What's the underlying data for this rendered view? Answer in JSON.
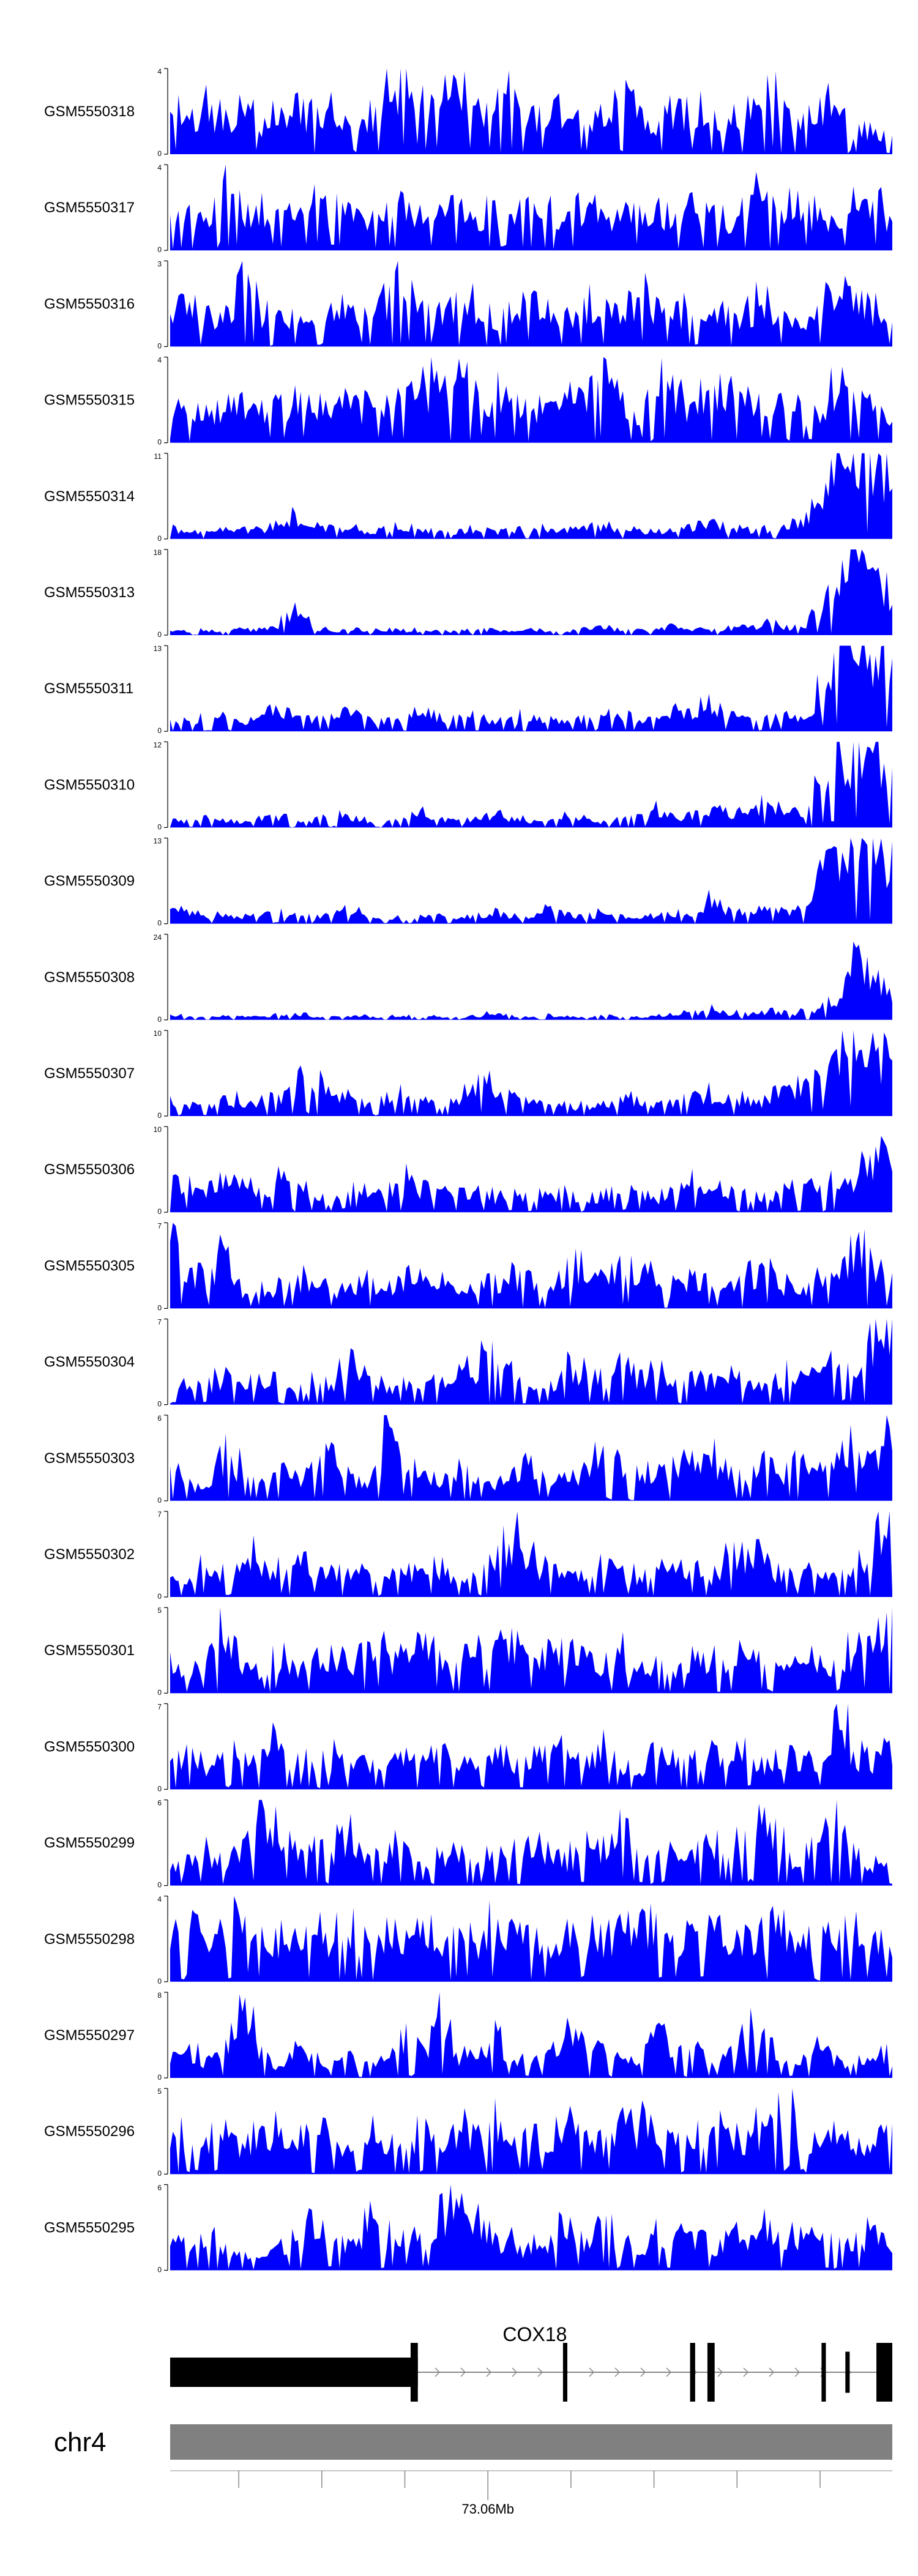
{
  "chart_data": {
    "type": "area",
    "fill_color": "#0000ff",
    "track_label_color": "#000000",
    "tracks": [
      {
        "name": "GSM5550318",
        "ymax": 4,
        "ymin": 0,
        "profile": [
          2.1,
          1.7,
          2.3,
          1.9,
          2.2,
          1.6,
          2.0,
          2.4,
          1.8,
          2.2,
          1.7,
          1.9,
          3.1,
          3.9,
          3.4,
          3.0,
          3.8,
          2.6,
          2.2,
          2.8,
          1.9,
          2.3,
          2.6,
          2.0,
          2.4,
          3.0,
          2.1,
          1.8,
          2.5,
          2.2,
          2.0,
          1.6,
          2.3,
          2.8,
          2.6,
          1.9,
          2.4,
          2.2,
          1.2,
          1.5,
          0.8
        ]
      },
      {
        "name": "GSM5550317",
        "ymax": 4,
        "ymin": 0,
        "profile": [
          1.8,
          2.2,
          1.5,
          3.8,
          2.1,
          1.9,
          2.4,
          1.6,
          2.8,
          2.3,
          2.0,
          1.7,
          2.5,
          1.9,
          2.2,
          1.8,
          2.6,
          1.7,
          2.0,
          2.4,
          3.1,
          2.2,
          1.9,
          2.3,
          1.5,
          2.0,
          2.2,
          1.8,
          2.1,
          2.5,
          2.0,
          1.6,
          2.3,
          3.0,
          2.4,
          2.1,
          1.8,
          1.5,
          2.7,
          3.0,
          1.2
        ]
      },
      {
        "name": "GSM5550316",
        "ymax": 3,
        "ymin": 0,
        "profile": [
          1.8,
          1.5,
          1.3,
          1.1,
          2.8,
          1.2,
          1.0,
          1.3,
          0.9,
          1.1,
          1.4,
          1.0,
          1.8,
          2.6,
          1.5,
          1.2,
          1.8,
          1.4,
          1.0,
          1.3,
          1.9,
          1.6,
          1.1,
          1.4,
          1.7,
          1.2,
          2.0,
          1.5,
          1.1,
          1.6,
          1.3,
          1.0,
          1.4,
          1.8,
          1.2,
          1.0,
          1.3,
          2.4,
          2.1,
          1.4,
          0.6
        ]
      },
      {
        "name": "GSM5550315",
        "ymax": 4,
        "ymin": 0,
        "profile": [
          1.9,
          2.1,
          1.7,
          1.8,
          2.3,
          2.0,
          1.9,
          2.4,
          2.1,
          1.8,
          2.0,
          1.6,
          1.9,
          2.2,
          3.0,
          2.6,
          3.8,
          2.7,
          2.2,
          2.5,
          1.8,
          2.4,
          2.1,
          2.6,
          3.1,
          2.3,
          1.5,
          2.8,
          2.2,
          1.9,
          2.6,
          2.9,
          2.3,
          1.8,
          2.0,
          1.7,
          1.9,
          3.0,
          2.8,
          1.6,
          1.0
        ]
      },
      {
        "name": "GSM5550314",
        "ymax": 11,
        "ymin": 0,
        "profile": [
          1.5,
          1.2,
          1.0,
          1.8,
          1.3,
          1.1,
          2.4,
          3.5,
          2.0,
          1.2,
          1.6,
          1.0,
          1.5,
          2.0,
          1.3,
          1.1,
          1.2,
          1.4,
          1.0,
          1.3,
          1.6,
          1.2,
          1.1,
          1.7,
          2.0,
          1.4,
          1.0,
          1.2,
          1.5,
          1.8,
          2.2,
          1.6,
          1.3,
          1.4,
          1.9,
          2.6,
          4.5,
          10.8,
          10.0,
          9.5,
          8.5
        ]
      },
      {
        "name": "GSM5550313",
        "ymax": 18,
        "ymin": 0,
        "profile": [
          1.0,
          0.8,
          1.2,
          0.9,
          1.5,
          1.1,
          2.5,
          4.8,
          1.8,
          1.0,
          1.3,
          1.1,
          1.4,
          1.2,
          1.0,
          0.9,
          1.1,
          1.3,
          1.0,
          1.2,
          1.5,
          1.1,
          0.9,
          1.4,
          1.8,
          1.2,
          1.1,
          1.3,
          2.0,
          1.5,
          1.2,
          1.4,
          2.2,
          2.8,
          1.8,
          2.0,
          6.0,
          15.0,
          17.5,
          15.0,
          10.0
        ]
      },
      {
        "name": "GSM5550311",
        "ymax": 13,
        "ymin": 0,
        "profile": [
          2.0,
          1.8,
          3.0,
          2.2,
          1.6,
          2.5,
          3.5,
          2.8,
          2.0,
          2.6,
          3.2,
          2.1,
          1.8,
          2.4,
          3.8,
          2.6,
          2.0,
          2.8,
          1.9,
          2.4,
          3.0,
          2.2,
          1.7,
          2.3,
          3.6,
          2.4,
          2.0,
          2.6,
          2.9,
          3.4,
          4.5,
          2.8,
          2.2,
          1.9,
          2.5,
          2.0,
          6.5,
          12.5,
          12.0,
          11.5,
          10.0
        ]
      },
      {
        "name": "GSM5550310",
        "ymax": 12,
        "ymin": 0,
        "profile": [
          1.2,
          1.0,
          1.5,
          1.1,
          0.9,
          1.3,
          1.8,
          1.0,
          1.2,
          2.0,
          1.4,
          1.1,
          0.9,
          1.6,
          2.5,
          1.3,
          1.0,
          1.5,
          2.2,
          1.4,
          1.1,
          1.3,
          1.8,
          1.2,
          1.0,
          1.4,
          1.6,
          2.8,
          1.5,
          2.0,
          3.5,
          2.4,
          1.8,
          4.5,
          3.0,
          2.5,
          8.0,
          11.8,
          11.5,
          11.0,
          9.5
        ]
      },
      {
        "name": "GSM5550309",
        "ymax": 13,
        "ymin": 0,
        "profile": [
          2.5,
          1.8,
          1.2,
          1.5,
          1.0,
          1.8,
          2.2,
          1.4,
          1.1,
          1.6,
          2.4,
          1.3,
          1.0,
          1.2,
          1.5,
          1.1,
          0.9,
          1.3,
          1.8,
          1.2,
          1.0,
          2.6,
          1.5,
          1.2,
          1.8,
          1.4,
          1.1,
          1.6,
          2.0,
          1.3,
          4.0,
          2.2,
          1.8,
          3.0,
          2.0,
          2.5,
          9.0,
          12.5,
          13.0,
          12.0,
          10.5
        ]
      },
      {
        "name": "GSM5550308",
        "ymax": 24,
        "ymin": 0,
        "profile": [
          1.5,
          1.0,
          0.8,
          1.2,
          0.9,
          1.1,
          1.6,
          2.2,
          1.4,
          1.0,
          1.3,
          1.1,
          0.9,
          1.2,
          1.5,
          1.0,
          0.8,
          1.4,
          1.9,
          1.2,
          1.0,
          1.3,
          1.1,
          0.9,
          1.2,
          1.6,
          1.0,
          1.4,
          1.8,
          2.4,
          3.0,
          2.2,
          1.6,
          2.8,
          2.0,
          2.5,
          4.0,
          8.0,
          22.0,
          16.0,
          8.0
        ]
      },
      {
        "name": "GSM5550307",
        "ymax": 10,
        "ymin": 0,
        "profile": [
          2.0,
          1.5,
          1.2,
          1.8,
          2.2,
          1.6,
          2.5,
          3.8,
          4.5,
          3.0,
          2.2,
          1.8,
          2.4,
          2.8,
          2.0,
          1.6,
          2.2,
          4.5,
          3.8,
          2.6,
          2.0,
          1.8,
          1.5,
          1.2,
          1.4,
          1.8,
          2.2,
          1.6,
          2.0,
          2.6,
          3.0,
          2.4,
          2.2,
          1.8,
          4.8,
          3.0,
          6.0,
          9.0,
          9.8,
          8.5,
          5.5
        ]
      },
      {
        "name": "GSM5550306",
        "ymax": 10,
        "ymin": 0,
        "profile": [
          3.5,
          4.2,
          2.0,
          5.0,
          3.8,
          2.5,
          4.6,
          3.0,
          2.2,
          1.8,
          4.5,
          3.6,
          2.8,
          4.0,
          3.2,
          2.4,
          3.6,
          2.8,
          2.0,
          2.6,
          1.8,
          2.2,
          2.8,
          1.9,
          2.4,
          3.0,
          2.1,
          1.8,
          2.6,
          3.8,
          2.5,
          3.2,
          2.4,
          2.0,
          3.0,
          2.6,
          4.0,
          3.2,
          5.0,
          6.8,
          9.5
        ]
      },
      {
        "name": "GSM5550305",
        "ymax": 7,
        "ymin": 0,
        "profile": [
          6.5,
          4.0,
          2.5,
          5.2,
          1.5,
          2.0,
          1.8,
          2.6,
          2.2,
          1.6,
          2.0,
          2.8,
          1.8,
          2.4,
          3.0,
          2.2,
          1.6,
          2.4,
          2.0,
          3.2,
          2.6,
          1.8,
          3.8,
          4.5,
          3.0,
          4.2,
          3.6,
          2.4,
          2.0,
          3.0,
          2.6,
          1.8,
          2.8,
          3.4,
          2.2,
          1.9,
          3.0,
          2.4,
          6.8,
          4.0,
          2.5
        ]
      },
      {
        "name": "GSM5550304",
        "ymax": 7,
        "ymin": 0,
        "profile": [
          1.5,
          2.0,
          1.8,
          2.6,
          1.6,
          2.2,
          1.8,
          1.4,
          2.4,
          1.8,
          3.8,
          2.2,
          1.6,
          2.0,
          1.5,
          2.4,
          2.8,
          3.5,
          4.2,
          3.0,
          2.2,
          1.8,
          3.8,
          2.6,
          2.0,
          4.0,
          2.4,
          2.8,
          1.8,
          2.6,
          2.0,
          3.0,
          2.2,
          1.9,
          2.6,
          2.2,
          3.0,
          4.2,
          2.6,
          6.8,
          7.0
        ]
      },
      {
        "name": "GSM5550303",
        "ymax": 6,
        "ymin": 0,
        "profile": [
          3.5,
          1.2,
          1.0,
          3.8,
          2.5,
          1.6,
          2.0,
          1.8,
          2.4,
          3.6,
          2.0,
          1.4,
          5.5,
          3.2,
          2.0,
          1.6,
          2.4,
          1.8,
          1.5,
          2.0,
          2.8,
          2.2,
          1.6,
          2.4,
          3.4,
          2.6,
          2.0,
          2.2,
          3.0,
          2.4,
          3.2,
          2.6,
          2.0,
          2.8,
          2.4,
          3.6,
          2.6,
          3.0,
          4.0,
          2.8,
          5.8
        ]
      },
      {
        "name": "GSM5550302",
        "ymax": 7,
        "ymin": 0,
        "profile": [
          2.8,
          2.0,
          3.4,
          2.2,
          4.0,
          3.2,
          2.4,
          3.6,
          2.8,
          2.0,
          2.4,
          1.8,
          2.2,
          2.6,
          2.0,
          2.4,
          1.8,
          2.2,
          4.5,
          5.5,
          3.2,
          2.4,
          2.8,
          2.0,
          3.0,
          2.2,
          1.8,
          2.6,
          2.2,
          2.8,
          2.0,
          3.6,
          4.0,
          2.8,
          2.2,
          1.8,
          2.4,
          2.0,
          3.0,
          5.0,
          7.0
        ]
      },
      {
        "name": "GSM5550301",
        "ymax": 5,
        "ymin": 0,
        "profile": [
          1.8,
          1.2,
          2.4,
          4.2,
          2.0,
          1.6,
          2.4,
          1.8,
          2.2,
          2.8,
          1.8,
          3.2,
          2.4,
          2.0,
          4.0,
          2.6,
          1.8,
          3.6,
          2.6,
          3.8,
          2.2,
          2.8,
          3.2,
          2.4,
          1.8,
          2.6,
          1.4,
          2.0,
          1.6,
          2.4,
          2.0,
          1.8,
          2.4,
          2.0,
          1.6,
          2.2,
          2.6,
          1.8,
          3.0,
          4.5,
          4.8
        ]
      },
      {
        "name": "GSM5550300",
        "ymax": 7,
        "ymin": 0,
        "profile": [
          2.8,
          3.6,
          2.2,
          4.2,
          3.0,
          2.4,
          4.5,
          3.2,
          2.6,
          3.0,
          2.0,
          2.6,
          2.2,
          3.0,
          2.4,
          3.4,
          2.6,
          2.2,
          3.6,
          2.4,
          2.8,
          3.2,
          4.0,
          2.6,
          3.6,
          2.4,
          2.0,
          3.0,
          2.4,
          2.8,
          3.4,
          2.6,
          3.0,
          2.4,
          3.2,
          2.8,
          2.4,
          6.8,
          3.0,
          2.6,
          3.6
        ]
      },
      {
        "name": "GSM5550299",
        "ymax": 6,
        "ymin": 0,
        "profile": [
          1.8,
          1.6,
          2.4,
          2.0,
          2.8,
          5.8,
          4.5,
          2.6,
          3.4,
          2.8,
          3.6,
          2.2,
          3.0,
          2.4,
          2.6,
          2.0,
          2.8,
          2.4,
          2.2,
          3.0,
          4.0,
          2.4,
          2.0,
          2.6,
          3.4,
          4.8,
          2.8,
          2.2,
          3.0,
          2.6,
          3.4,
          4.0,
          3.2,
          5.8,
          2.8,
          1.8,
          3.0,
          5.2,
          2.0,
          1.8,
          1.6
        ]
      },
      {
        "name": "GSM5550298",
        "ymax": 4,
        "ymin": 0,
        "profile": [
          2.2,
          3.0,
          2.4,
          2.8,
          3.5,
          2.6,
          2.2,
          3.2,
          2.4,
          2.0,
          2.8,
          2.2,
          2.6,
          2.0,
          2.4,
          2.0,
          2.6,
          2.2,
          2.8,
          3.0,
          2.4,
          2.2,
          2.6,
          2.4,
          2.0,
          2.6,
          3.0,
          2.2,
          1.8,
          2.4,
          2.8,
          2.2,
          2.6,
          2.4,
          3.0,
          2.2,
          2.0,
          3.2,
          2.4,
          2.0,
          2.2
        ]
      },
      {
        "name": "GSM5550297",
        "ymax": 8,
        "ymin": 0,
        "profile": [
          2.0,
          3.0,
          1.6,
          2.8,
          7.8,
          2.6,
          1.2,
          3.2,
          1.8,
          1.5,
          2.2,
          1.4,
          2.0,
          4.6,
          2.6,
          6.4,
          2.2,
          1.8,
          3.8,
          2.4,
          1.6,
          2.4,
          5.0,
          2.6,
          3.2,
          1.8,
          2.6,
          4.4,
          2.8,
          3.2,
          1.8,
          2.4,
          6.2,
          4.0,
          2.2,
          1.8,
          2.8,
          2.0,
          1.6,
          2.4,
          2.2
        ]
      },
      {
        "name": "GSM5550296",
        "ymax": 5,
        "ymin": 0,
        "profile": [
          2.2,
          2.8,
          2.0,
          2.4,
          1.8,
          2.6,
          3.2,
          2.2,
          3.6,
          2.4,
          1.8,
          2.4,
          2.0,
          1.8,
          2.6,
          2.0,
          2.8,
          2.4,
          3.0,
          2.2,
          2.6,
          2.2,
          3.2,
          2.4,
          2.0,
          2.6,
          3.0,
          2.2,
          2.4,
          2.0,
          2.8,
          2.4,
          2.2,
          3.2,
          4.6,
          2.6,
          2.0,
          2.8,
          2.2,
          2.4,
          2.6
        ]
      },
      {
        "name": "GSM5550295",
        "ymax": 6,
        "ymin": 0,
        "profile": [
          2.2,
          1.6,
          3.4,
          2.0,
          1.4,
          0.8,
          1.6,
          2.8,
          4.2,
          2.6,
          1.8,
          3.4,
          2.4,
          3.6,
          2.0,
          4.8,
          5.6,
          4.4,
          2.6,
          2.0,
          1.6,
          2.4,
          3.6,
          2.0,
          4.0,
          2.6,
          1.8,
          3.0,
          2.4,
          2.8,
          2.0,
          2.6,
          2.2,
          3.8,
          2.4,
          3.2,
          2.6,
          2.0,
          2.4,
          2.8,
          2.2
        ]
      }
    ],
    "gene": {
      "name": "COX18",
      "strand": "-",
      "color": "#000000",
      "intron_color": "#888888",
      "exons": [
        [
          0.0,
          0.343,
          0.5
        ],
        [
          0.333,
          0.343,
          1.0
        ],
        [
          0.544,
          0.55,
          1.0
        ],
        [
          0.72,
          0.727,
          1.0
        ],
        [
          0.744,
          0.754,
          1.0
        ],
        [
          0.902,
          0.908,
          1.0
        ],
        [
          0.935,
          0.941,
          0.7
        ],
        [
          0.978,
          1.0,
          1.0
        ]
      ]
    },
    "ideogram": {
      "chromosome": "chr4",
      "color": "#808080",
      "tick_label": "73.06Mb",
      "tick_positions": [
        0.095,
        0.21,
        0.325,
        0.44,
        0.555,
        0.67,
        0.785,
        0.9
      ],
      "labeled_tick_position": 0.44
    }
  }
}
